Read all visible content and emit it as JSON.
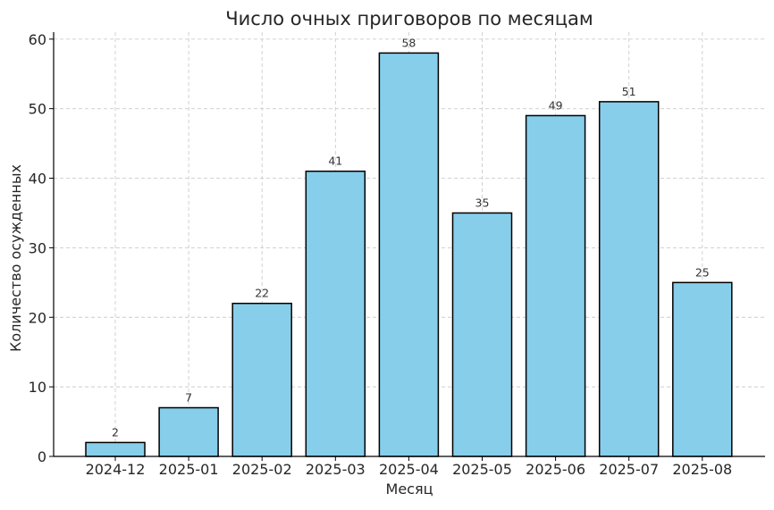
{
  "chart_data": {
    "type": "bar",
    "title": "Число очных приговоров по месяцам",
    "xlabel": "Месяц",
    "ylabel": "Количество осужденных",
    "categories": [
      "2024-12",
      "2025-01",
      "2025-02",
      "2025-03",
      "2025-04",
      "2025-05",
      "2025-06",
      "2025-07",
      "2025-08"
    ],
    "values": [
      2,
      7,
      22,
      41,
      58,
      35,
      49,
      51,
      25
    ],
    "ylim": [
      0,
      61
    ],
    "yticks": [
      0,
      10,
      20,
      30,
      40,
      50,
      60
    ],
    "grid": true,
    "bar_color": "#87ceeb",
    "edge_color": "#000000",
    "data_labels": true
  }
}
